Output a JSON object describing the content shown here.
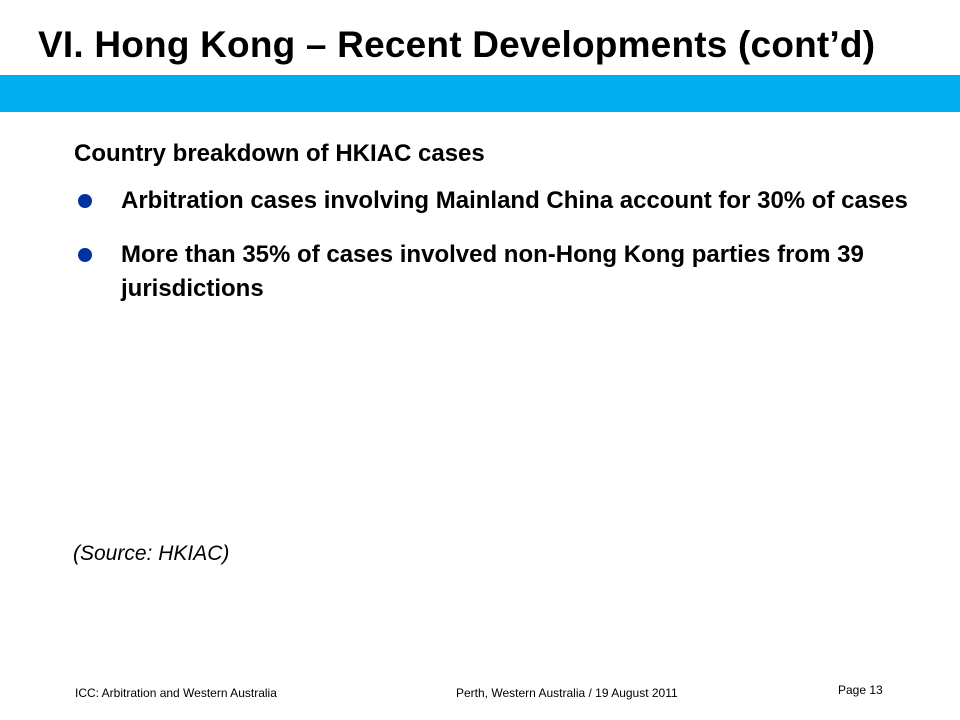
{
  "slide": {
    "title": "VI.  Hong Kong – Recent Developments (cont’d)",
    "band_color": "#00AEEF",
    "bullet_color": "#0033A0"
  },
  "content": {
    "heading": "Country breakdown of HKIAC cases",
    "bullets": [
      {
        "text": "Arbitration cases involving Mainland China account for 30% of cases"
      },
      {
        "text": "More than 35% of cases involved non-Hong Kong parties from 39 jurisdictions"
      }
    ],
    "source": "(Source:  HKIAC)"
  },
  "footer": {
    "left": "ICC: Arbitration and Western Australia",
    "center": "Perth, Western Australia / 19 August 2011",
    "page_label": "Page 13"
  }
}
